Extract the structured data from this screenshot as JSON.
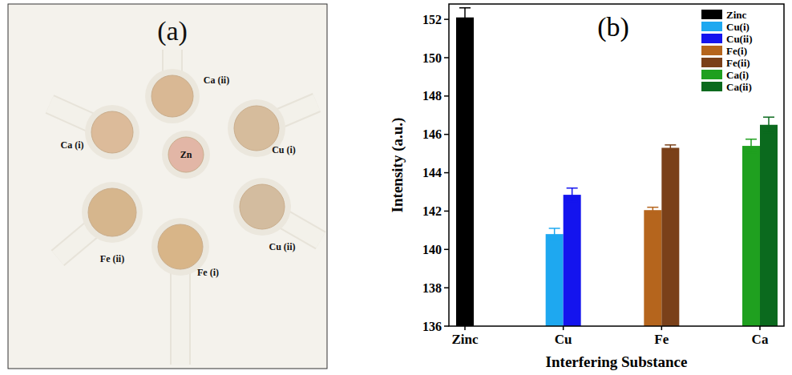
{
  "panel_labels": [
    "(a)",
    "(b)"
  ],
  "photo": {
    "sensors": [
      {
        "label": "Zn"
      },
      {
        "label": "Ca (ii)"
      },
      {
        "label": "Cu (i)"
      },
      {
        "label": "Cu (ii)"
      },
      {
        "label": "Fe (i)"
      },
      {
        "label": "Fe (ii)"
      },
      {
        "label": "Ca (i)"
      }
    ]
  },
  "chart_data": {
    "type": "bar",
    "x_label": "Interfering Substance",
    "y_label": "Intensity (a.u.)",
    "categories": [
      "Zinc",
      "Cu",
      "Fe",
      "Ca"
    ],
    "series": [
      {
        "name": "Zinc",
        "color": "#000000",
        "values": [
          152.1,
          null,
          null,
          null
        ],
        "errors": [
          0.5,
          null,
          null,
          null
        ]
      },
      {
        "name": "Cu(i)",
        "color": "#1ea8f0",
        "values": [
          null,
          140.8,
          null,
          null
        ],
        "errors": [
          null,
          0.3,
          null,
          null
        ]
      },
      {
        "name": "Cu(ii)",
        "color": "#1414ee",
        "values": [
          null,
          142.85,
          null,
          null
        ],
        "errors": [
          null,
          0.35,
          null,
          null
        ]
      },
      {
        "name": "Fe(i)",
        "color": "#b5651d",
        "values": [
          null,
          null,
          142.05,
          null
        ],
        "errors": [
          null,
          null,
          0.15,
          null
        ]
      },
      {
        "name": "Fe(ii)",
        "color": "#7a4019",
        "values": [
          null,
          null,
          145.3,
          null
        ],
        "errors": [
          null,
          null,
          0.15,
          null
        ]
      },
      {
        "name": "Ca(i)",
        "color": "#1fa01f",
        "values": [
          null,
          null,
          null,
          145.4
        ],
        "errors": [
          null,
          null,
          null,
          0.35
        ]
      },
      {
        "name": "Ca(ii)",
        "color": "#0b6a1e",
        "values": [
          null,
          null,
          null,
          146.5
        ],
        "errors": [
          null,
          null,
          null,
          0.4
        ]
      }
    ],
    "ylim": [
      136,
      152.8
    ],
    "yticks": [
      136,
      138,
      140,
      142,
      144,
      146,
      148,
      150,
      152
    ],
    "grid": false,
    "legend": "upper right"
  }
}
